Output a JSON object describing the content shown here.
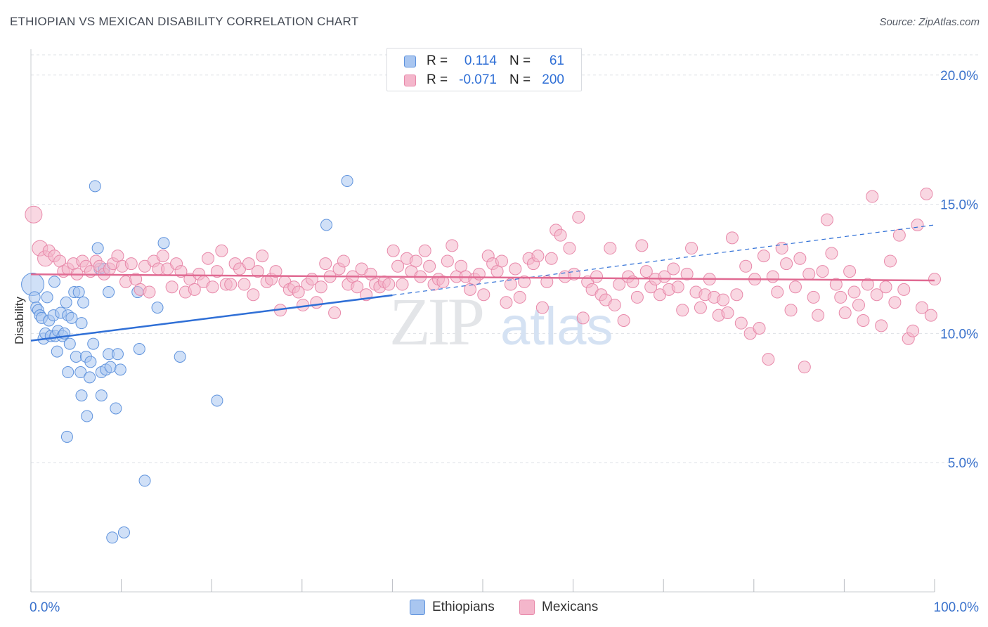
{
  "header": {
    "title": "ETHIOPIAN VS MEXICAN DISABILITY CORRELATION CHART",
    "source": "Source: ZipAtlas.com"
  },
  "watermark": {
    "zip": "ZIP",
    "atlas": "atlas"
  },
  "legend": {
    "rows": [
      {
        "r_label": "R =",
        "r_value": "0.114",
        "n_label": "N =",
        "n_value": "61",
        "color": "#a9c6f0"
      },
      {
        "r_label": "R =",
        "r_value": "-0.071",
        "n_label": "N =",
        "n_value": "200",
        "color": "#f4b6cb"
      }
    ]
  },
  "bottom_legend": {
    "items": [
      {
        "label": "Ethiopians",
        "color": "#a9c6f0"
      },
      {
        "label": "Mexicans",
        "color": "#f4b6cb"
      }
    ]
  },
  "colors": {
    "ethiopians_fill": "#a9c6f0",
    "ethiopians_stroke": "#5f93dd",
    "ethiopians_line": "#2f6fd6",
    "mexicans_fill": "#f4b6cb",
    "mexicans_stroke": "#e889aa",
    "mexicans_line": "#e06a92",
    "grid": "#dde0e5",
    "tick_text": "#3a72cc"
  },
  "chart_data": {
    "type": "scatter",
    "title": "ETHIOPIAN VS MEXICAN DISABILITY CORRELATION CHART",
    "xlabel": "",
    "ylabel": "Disability",
    "xlim": [
      0,
      100
    ],
    "ylim": [
      0,
      21
    ],
    "x_ticks": [
      0,
      10,
      20,
      30,
      40,
      50,
      60,
      70,
      80,
      90,
      100
    ],
    "x_tick_labels": [
      "0.0%",
      "100.0%"
    ],
    "y_ticks": [
      5,
      10,
      15,
      20
    ],
    "y_tick_labels": [
      "5.0%",
      "10.0%",
      "15.0%",
      "20.0%"
    ],
    "grid": true,
    "legend_position": "top-center",
    "series": [
      {
        "name": "Ethiopians",
        "r": 0.114,
        "n": 61,
        "trend": {
          "x": [
            0,
            40
          ],
          "y": [
            9.72,
            11.48
          ],
          "extended_to": [
            100,
            14.2
          ]
        },
        "points": [
          [
            0.2,
            11.9
          ],
          [
            0.4,
            11.4
          ],
          [
            0.6,
            11.0
          ],
          [
            0.8,
            10.9
          ],
          [
            1.0,
            10.7
          ],
          [
            1.2,
            10.6
          ],
          [
            1.4,
            9.8
          ],
          [
            1.6,
            10.0
          ],
          [
            1.8,
            11.4
          ],
          [
            2.0,
            10.5
          ],
          [
            2.2,
            9.9
          ],
          [
            2.5,
            10.7
          ],
          [
            2.7,
            9.9
          ],
          [
            2.9,
            9.3
          ],
          [
            2.6,
            12.0
          ],
          [
            3.0,
            10.1
          ],
          [
            3.3,
            10.8
          ],
          [
            3.5,
            9.9
          ],
          [
            3.7,
            10.0
          ],
          [
            3.9,
            11.2
          ],
          [
            4.1,
            10.7
          ],
          [
            4.3,
            9.6
          ],
          [
            4.1,
            8.5
          ],
          [
            4.5,
            10.6
          ],
          [
            4.8,
            11.6
          ],
          [
            5.0,
            9.1
          ],
          [
            5.3,
            11.6
          ],
          [
            5.5,
            8.5
          ],
          [
            5.6,
            10.4
          ],
          [
            5.8,
            11.2
          ],
          [
            5.6,
            7.6
          ],
          [
            6.1,
            9.1
          ],
          [
            6.2,
            6.8
          ],
          [
            6.5,
            8.3
          ],
          [
            6.6,
            8.9
          ],
          [
            6.9,
            9.6
          ],
          [
            7.1,
            15.7
          ],
          [
            7.4,
            13.3
          ],
          [
            7.6,
            12.5
          ],
          [
            7.8,
            7.6
          ],
          [
            7.8,
            8.5
          ],
          [
            8.1,
            12.5
          ],
          [
            8.3,
            8.6
          ],
          [
            8.6,
            11.6
          ],
          [
            8.6,
            9.2
          ],
          [
            8.8,
            8.7
          ],
          [
            9.0,
            2.1
          ],
          [
            9.4,
            7.1
          ],
          [
            9.6,
            9.2
          ],
          [
            9.9,
            8.6
          ],
          [
            10.3,
            2.3
          ],
          [
            11.8,
            11.6
          ],
          [
            12.0,
            9.4
          ],
          [
            12.6,
            4.3
          ],
          [
            14.0,
            11.0
          ],
          [
            14.7,
            13.5
          ],
          [
            16.5,
            9.1
          ],
          [
            20.6,
            7.4
          ],
          [
            32.7,
            14.2
          ],
          [
            4.0,
            6.0
          ],
          [
            35.0,
            15.9
          ]
        ]
      },
      {
        "name": "Mexicans",
        "r": -0.071,
        "n": 200,
        "trend": {
          "x": [
            0,
            100
          ],
          "y": [
            12.29,
            12.05
          ]
        },
        "points": [
          [
            0.3,
            14.6
          ],
          [
            1.0,
            13.3
          ],
          [
            1.6,
            12.9
          ],
          [
            2.0,
            13.2
          ],
          [
            2.6,
            13.0
          ],
          [
            3.2,
            12.8
          ],
          [
            3.6,
            12.4
          ],
          [
            4.1,
            12.5
          ],
          [
            4.7,
            12.7
          ],
          [
            5.1,
            12.3
          ],
          [
            5.7,
            12.8
          ],
          [
            6.1,
            12.6
          ],
          [
            6.6,
            12.4
          ],
          [
            7.2,
            12.8
          ],
          [
            7.6,
            12.6
          ],
          [
            8.1,
            12.3
          ],
          [
            8.7,
            12.5
          ],
          [
            9.1,
            12.7
          ],
          [
            9.6,
            13.0
          ],
          [
            10.1,
            12.6
          ],
          [
            10.5,
            12.0
          ],
          [
            11.1,
            12.7
          ],
          [
            11.6,
            12.1
          ],
          [
            12.1,
            11.7
          ],
          [
            12.6,
            12.6
          ],
          [
            13.1,
            11.6
          ],
          [
            13.6,
            12.8
          ],
          [
            14.1,
            12.5
          ],
          [
            14.6,
            13.0
          ],
          [
            15.1,
            12.5
          ],
          [
            15.6,
            11.8
          ],
          [
            16.1,
            12.7
          ],
          [
            16.6,
            12.4
          ],
          [
            17.1,
            11.6
          ],
          [
            17.6,
            12.1
          ],
          [
            18.1,
            11.7
          ],
          [
            18.6,
            12.3
          ],
          [
            19.1,
            12.0
          ],
          [
            19.6,
            12.9
          ],
          [
            20.1,
            11.8
          ],
          [
            20.6,
            12.4
          ],
          [
            21.1,
            13.2
          ],
          [
            21.6,
            11.9
          ],
          [
            22.1,
            11.9
          ],
          [
            22.6,
            12.7
          ],
          [
            23.1,
            12.5
          ],
          [
            23.6,
            11.9
          ],
          [
            24.1,
            12.7
          ],
          [
            24.6,
            11.5
          ],
          [
            25.1,
            12.4
          ],
          [
            25.6,
            13.0
          ],
          [
            26.1,
            12.0
          ],
          [
            26.6,
            12.1
          ],
          [
            27.1,
            12.4
          ],
          [
            27.6,
            10.9
          ],
          [
            28.1,
            12.0
          ],
          [
            28.6,
            11.7
          ],
          [
            29.1,
            11.8
          ],
          [
            29.6,
            11.6
          ],
          [
            30.1,
            11.1
          ],
          [
            30.6,
            11.9
          ],
          [
            31.1,
            12.1
          ],
          [
            31.6,
            11.2
          ],
          [
            32.1,
            11.8
          ],
          [
            32.6,
            12.7
          ],
          [
            33.1,
            12.2
          ],
          [
            33.6,
            10.8
          ],
          [
            34.1,
            12.5
          ],
          [
            34.6,
            12.8
          ],
          [
            35.1,
            11.9
          ],
          [
            35.6,
            12.2
          ],
          [
            36.1,
            11.8
          ],
          [
            36.6,
            12.5
          ],
          [
            37.1,
            11.5
          ],
          [
            37.6,
            12.3
          ],
          [
            38.1,
            11.9
          ],
          [
            38.6,
            11.8
          ],
          [
            39.1,
            12.0
          ],
          [
            39.6,
            11.9
          ],
          [
            40.1,
            13.2
          ],
          [
            40.6,
            12.6
          ],
          [
            41.1,
            11.9
          ],
          [
            41.6,
            12.9
          ],
          [
            42.1,
            12.4
          ],
          [
            42.6,
            12.8
          ],
          [
            43.1,
            12.2
          ],
          [
            43.6,
            13.2
          ],
          [
            44.1,
            12.6
          ],
          [
            44.6,
            11.9
          ],
          [
            45.1,
            12.1
          ],
          [
            45.6,
            12.0
          ],
          [
            46.1,
            12.8
          ],
          [
            46.6,
            13.4
          ],
          [
            47.1,
            12.2
          ],
          [
            47.6,
            12.6
          ],
          [
            48.1,
            12.2
          ],
          [
            48.6,
            11.7
          ],
          [
            49.1,
            12.1
          ],
          [
            49.6,
            12.3
          ],
          [
            50.1,
            11.5
          ],
          [
            50.6,
            13.0
          ],
          [
            51.1,
            12.7
          ],
          [
            51.6,
            12.4
          ],
          [
            52.1,
            12.8
          ],
          [
            52.6,
            11.2
          ],
          [
            53.1,
            11.9
          ],
          [
            53.6,
            12.5
          ],
          [
            54.1,
            11.4
          ],
          [
            54.6,
            12.0
          ],
          [
            55.1,
            12.9
          ],
          [
            55.6,
            12.7
          ],
          [
            56.1,
            13.0
          ],
          [
            56.6,
            11.0
          ],
          [
            57.1,
            12.0
          ],
          [
            57.6,
            12.9
          ],
          [
            58.1,
            14.0
          ],
          [
            58.6,
            13.8
          ],
          [
            59.1,
            12.2
          ],
          [
            59.6,
            13.3
          ],
          [
            60.1,
            12.3
          ],
          [
            60.6,
            14.5
          ],
          [
            61.1,
            10.6
          ],
          [
            61.6,
            12.0
          ],
          [
            62.1,
            11.7
          ],
          [
            62.6,
            12.2
          ],
          [
            63.1,
            11.5
          ],
          [
            63.6,
            11.3
          ],
          [
            64.1,
            13.3
          ],
          [
            64.6,
            11.1
          ],
          [
            65.1,
            11.9
          ],
          [
            65.6,
            10.5
          ],
          [
            66.1,
            12.2
          ],
          [
            66.6,
            12.0
          ],
          [
            67.1,
            11.4
          ],
          [
            67.6,
            13.4
          ],
          [
            68.1,
            12.4
          ],
          [
            68.6,
            11.8
          ],
          [
            69.1,
            12.1
          ],
          [
            69.6,
            11.5
          ],
          [
            70.1,
            12.2
          ],
          [
            70.6,
            11.7
          ],
          [
            71.1,
            12.5
          ],
          [
            71.6,
            11.8
          ],
          [
            72.1,
            10.9
          ],
          [
            72.6,
            12.3
          ],
          [
            73.1,
            13.3
          ],
          [
            73.6,
            11.6
          ],
          [
            74.1,
            11.0
          ],
          [
            74.6,
            11.5
          ],
          [
            75.1,
            12.1
          ],
          [
            75.6,
            11.4
          ],
          [
            76.1,
            10.7
          ],
          [
            76.6,
            11.3
          ],
          [
            77.1,
            10.8
          ],
          [
            77.6,
            13.7
          ],
          [
            78.1,
            11.5
          ],
          [
            78.6,
            10.4
          ],
          [
            79.1,
            12.6
          ],
          [
            79.6,
            10.0
          ],
          [
            80.1,
            12.1
          ],
          [
            80.6,
            10.2
          ],
          [
            81.1,
            13.0
          ],
          [
            81.6,
            9.0
          ],
          [
            82.1,
            12.2
          ],
          [
            82.6,
            11.6
          ],
          [
            83.1,
            13.3
          ],
          [
            83.6,
            12.7
          ],
          [
            84.1,
            10.9
          ],
          [
            84.6,
            11.8
          ],
          [
            85.1,
            12.9
          ],
          [
            85.6,
            8.7
          ],
          [
            86.1,
            12.3
          ],
          [
            86.6,
            11.4
          ],
          [
            87.1,
            10.7
          ],
          [
            87.6,
            12.4
          ],
          [
            88.1,
            14.4
          ],
          [
            88.6,
            13.1
          ],
          [
            89.1,
            11.9
          ],
          [
            89.6,
            11.4
          ],
          [
            90.1,
            10.8
          ],
          [
            90.6,
            12.4
          ],
          [
            91.1,
            11.6
          ],
          [
            91.6,
            11.1
          ],
          [
            92.1,
            10.5
          ],
          [
            92.6,
            11.9
          ],
          [
            93.1,
            15.3
          ],
          [
            93.6,
            11.5
          ],
          [
            94.1,
            10.3
          ],
          [
            94.6,
            11.8
          ],
          [
            95.1,
            12.8
          ],
          [
            95.6,
            11.2
          ],
          [
            96.1,
            13.8
          ],
          [
            96.6,
            11.7
          ],
          [
            97.1,
            9.8
          ],
          [
            97.6,
            10.1
          ],
          [
            98.1,
            14.2
          ],
          [
            98.6,
            11.0
          ],
          [
            99.1,
            15.4
          ],
          [
            99.6,
            10.7
          ],
          [
            100.0,
            12.1
          ]
        ]
      }
    ]
  }
}
